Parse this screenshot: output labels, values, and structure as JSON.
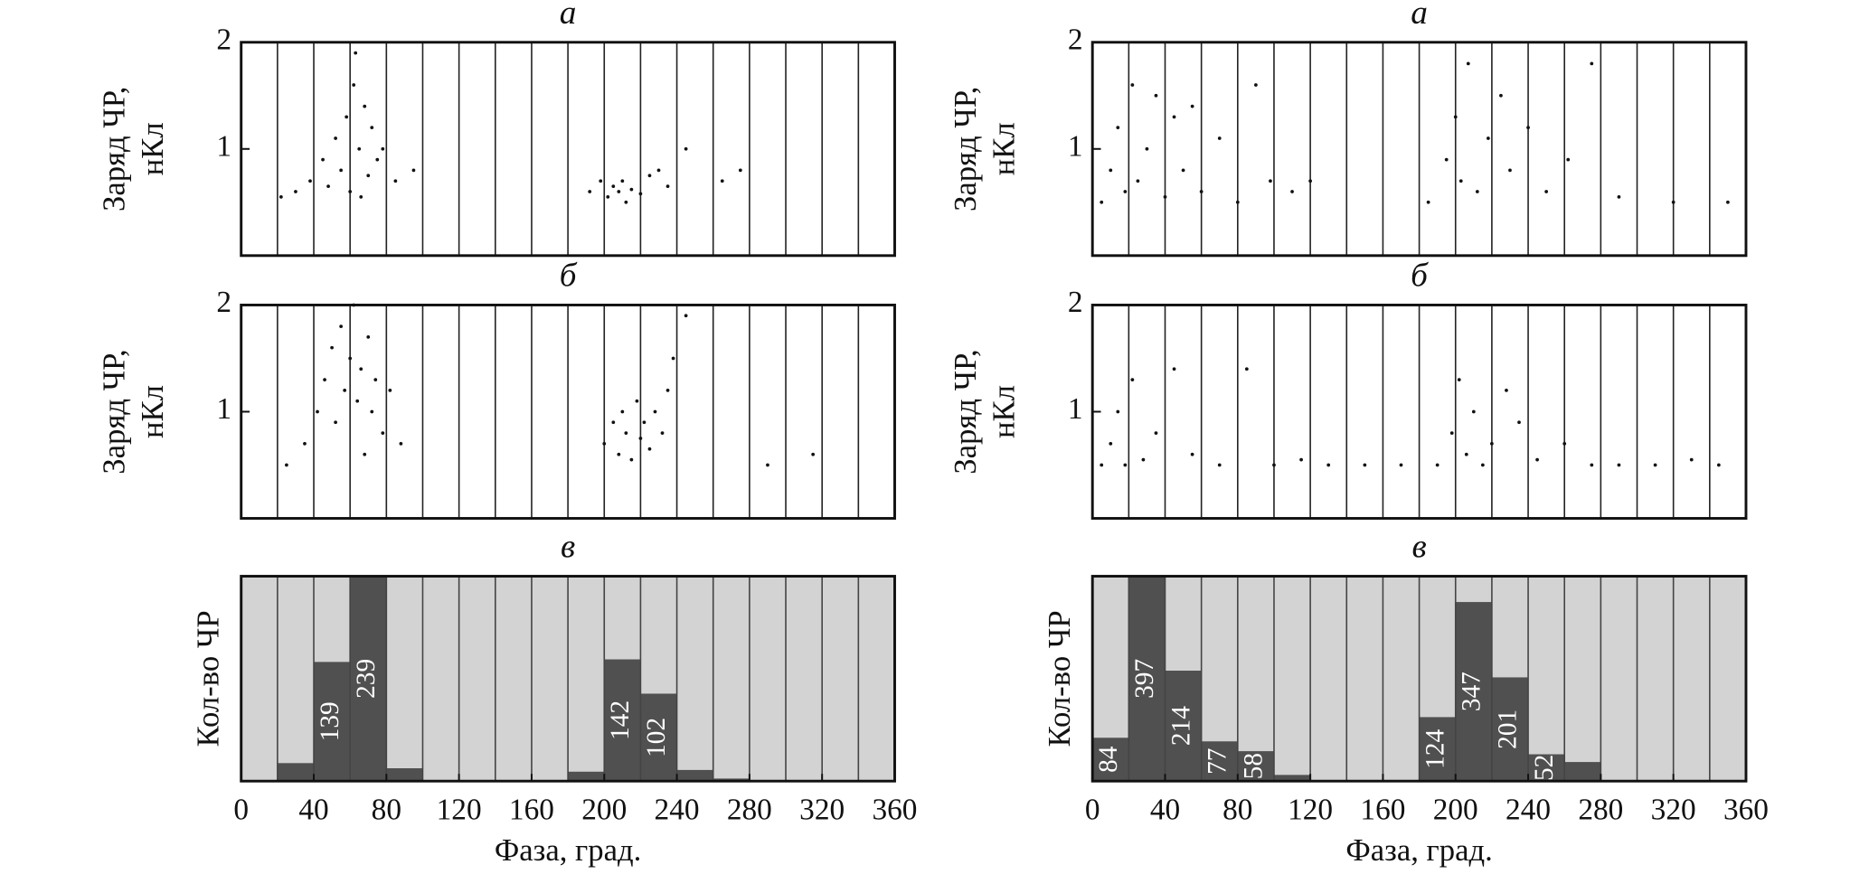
{
  "chart_data": [
    {
      "type": "scatter",
      "title": "а",
      "ylabel": [
        "Заряд ЧР,",
        "нКл"
      ],
      "color": "#111111",
      "xlim": [
        0,
        360
      ],
      "ylim": [
        0,
        2
      ],
      "yticks": [
        1,
        2
      ],
      "xgrid": [
        20,
        40,
        60,
        80,
        100,
        120,
        140,
        160,
        180,
        200,
        220,
        240,
        260,
        280,
        300,
        320,
        340
      ],
      "x": [
        22,
        30,
        38,
        45,
        48,
        52,
        55,
        58,
        60,
        62,
        63,
        65,
        66,
        68,
        70,
        72,
        75,
        78,
        85,
        95,
        192,
        198,
        202,
        205,
        208,
        210,
        212,
        215,
        220,
        225,
        230,
        235,
        245,
        265,
        275
      ],
      "y": [
        0.55,
        0.6,
        0.7,
        0.9,
        0.65,
        1.1,
        0.8,
        1.3,
        0.6,
        1.6,
        1.9,
        1.0,
        0.55,
        1.4,
        0.75,
        1.2,
        0.9,
        1.0,
        0.7,
        0.8,
        0.6,
        0.7,
        0.55,
        0.65,
        0.6,
        0.7,
        0.5,
        0.62,
        0.58,
        0.75,
        0.8,
        0.65,
        1.0,
        0.7,
        0.8
      ]
    },
    {
      "type": "scatter",
      "title": "б",
      "ylabel": [
        "Заряд ЧР,",
        "нКл"
      ],
      "color": "#111111",
      "xlim": [
        0,
        360
      ],
      "ylim": [
        0,
        2
      ],
      "yticks": [
        1,
        2
      ],
      "xgrid": [
        20,
        40,
        60,
        80,
        100,
        120,
        140,
        160,
        180,
        200,
        220,
        240,
        260,
        280,
        300,
        320,
        340
      ],
      "x": [
        25,
        35,
        42,
        46,
        50,
        52,
        55,
        57,
        60,
        62,
        64,
        66,
        68,
        70,
        72,
        74,
        78,
        82,
        88,
        200,
        205,
        208,
        210,
        212,
        215,
        218,
        220,
        222,
        225,
        228,
        232,
        235,
        238,
        245,
        290,
        315
      ],
      "y": [
        0.5,
        0.7,
        1.0,
        1.3,
        1.6,
        0.9,
        1.8,
        1.2,
        1.5,
        2.0,
        1.1,
        1.4,
        0.6,
        1.7,
        1.0,
        1.3,
        0.8,
        1.2,
        0.7,
        0.7,
        0.9,
        0.6,
        1.0,
        0.8,
        0.55,
        1.1,
        0.75,
        0.9,
        0.65,
        1.0,
        0.8,
        1.2,
        1.5,
        1.9,
        0.5,
        0.6
      ]
    },
    {
      "type": "histogram",
      "title": "в",
      "ylabel": [
        "Кол-во ЧР"
      ],
      "xlabel": "Фаза, град.",
      "color": "#505050",
      "background": "#d3d3d3",
      "xlim": [
        0,
        360
      ],
      "ylim": [
        0,
        239
      ],
      "xticks": [
        0,
        40,
        80,
        120,
        160,
        200,
        240,
        280,
        320,
        360
      ],
      "bins": [
        0,
        20,
        40,
        60,
        80,
        100,
        120,
        140,
        160,
        180,
        200,
        220,
        240,
        260,
        280,
        300,
        320,
        340,
        360
      ],
      "values": [
        0,
        21,
        139,
        239,
        15,
        0,
        0,
        0,
        0,
        11,
        142,
        102,
        13,
        3,
        0,
        0,
        0,
        0
      ],
      "value_labels": [
        null,
        null,
        "139",
        "239",
        null,
        null,
        null,
        null,
        null,
        null,
        "142",
        "102",
        null,
        null,
        null,
        null,
        null,
        null
      ]
    },
    {
      "type": "scatter",
      "title": "а",
      "ylabel": [
        "Заряд ЧР,",
        "нКл"
      ],
      "color": "#111111",
      "xlim": [
        0,
        360
      ],
      "ylim": [
        0,
        2
      ],
      "yticks": [
        1,
        2
      ],
      "xgrid": [
        20,
        40,
        60,
        80,
        100,
        120,
        140,
        160,
        180,
        200,
        220,
        240,
        260,
        280,
        300,
        320,
        340
      ],
      "x": [
        5,
        10,
        14,
        18,
        22,
        25,
        30,
        35,
        40,
        45,
        50,
        55,
        60,
        70,
        80,
        90,
        98,
        110,
        120,
        185,
        195,
        200,
        203,
        207,
        212,
        218,
        225,
        230,
        240,
        250,
        262,
        275,
        290,
        320,
        350
      ],
      "y": [
        0.5,
        0.8,
        1.2,
        0.6,
        1.6,
        0.7,
        1.0,
        1.5,
        0.55,
        1.3,
        0.8,
        1.4,
        0.6,
        1.1,
        0.5,
        1.6,
        0.7,
        0.6,
        0.7,
        0.5,
        0.9,
        1.3,
        0.7,
        1.8,
        0.6,
        1.1,
        1.5,
        0.8,
        1.2,
        0.6,
        0.9,
        1.8,
        0.55,
        0.5,
        0.5
      ]
    },
    {
      "type": "scatter",
      "title": "б",
      "ylabel": [
        "Заряд ЧР,",
        "нКл"
      ],
      "color": "#111111",
      "xlim": [
        0,
        360
      ],
      "ylim": [
        0,
        2
      ],
      "yticks": [
        1,
        2
      ],
      "xgrid": [
        20,
        40,
        60,
        80,
        100,
        120,
        140,
        160,
        180,
        200,
        220,
        240,
        260,
        280,
        300,
        320,
        340
      ],
      "x": [
        5,
        10,
        14,
        18,
        22,
        28,
        35,
        45,
        55,
        70,
        85,
        100,
        115,
        130,
        150,
        170,
        190,
        198,
        202,
        206,
        210,
        215,
        220,
        228,
        235,
        245,
        260,
        275,
        290,
        310,
        330,
        345
      ],
      "y": [
        0.5,
        0.7,
        1.0,
        0.5,
        1.3,
        0.55,
        0.8,
        1.4,
        0.6,
        0.5,
        1.4,
        0.5,
        0.55,
        0.5,
        0.5,
        0.5,
        0.5,
        0.8,
        1.3,
        0.6,
        1.0,
        0.5,
        0.7,
        1.2,
        0.9,
        0.55,
        0.7,
        0.5,
        0.5,
        0.5,
        0.55,
        0.5
      ]
    },
    {
      "type": "histogram",
      "title": "в",
      "ylabel": [
        "Кол-во ЧР"
      ],
      "xlabel": "Фаза, град.",
      "color": "#505050",
      "background": "#d3d3d3",
      "xlim": [
        0,
        360
      ],
      "ylim": [
        0,
        397
      ],
      "xticks": [
        0,
        40,
        80,
        120,
        160,
        200,
        240,
        280,
        320,
        360
      ],
      "bins": [
        0,
        20,
        40,
        60,
        80,
        100,
        120,
        140,
        160,
        180,
        200,
        220,
        240,
        260,
        280,
        300,
        320,
        340,
        360
      ],
      "values": [
        84,
        397,
        214,
        77,
        58,
        12,
        0,
        0,
        0,
        124,
        347,
        201,
        52,
        37,
        0,
        0,
        0,
        0
      ],
      "value_labels": [
        "84",
        "397",
        "214",
        "77",
        "58",
        null,
        null,
        null,
        null,
        "124",
        "347",
        "201",
        "52",
        null,
        null,
        null,
        null,
        null
      ]
    }
  ]
}
